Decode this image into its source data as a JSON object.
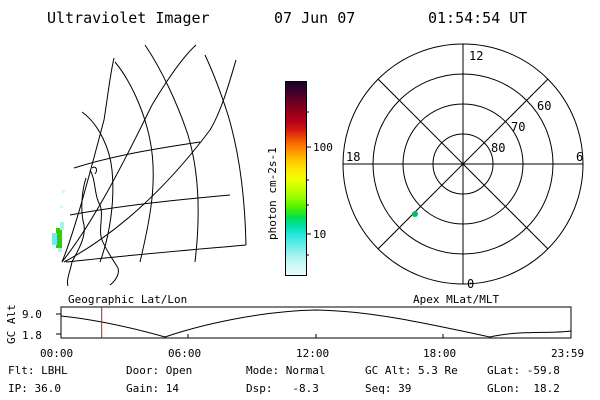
{
  "header": {
    "instrument": "Ultraviolet Imager",
    "date": "07 Jun 07",
    "time": "01:54:54 UT"
  },
  "left_panel": {
    "caption": "Geographic Lat/Lon"
  },
  "colorbar": {
    "label": "photon cm-2s-1",
    "ticks": [
      "100",
      "10"
    ],
    "colors": [
      "#1a0026",
      "#40002a",
      "#6a0022",
      "#90001a",
      "#b20016",
      "#d41a10",
      "#ee5a00",
      "#ff8c00",
      "#ffbf00",
      "#ffe400",
      "#f0ff00",
      "#c8ff00",
      "#90ff00",
      "#50f000",
      "#00e050",
      "#00e0b0",
      "#30e8e0",
      "#70ece8",
      "#a8f2f0",
      "#d0f8f6",
      "#e8fcfb"
    ]
  },
  "polar_plot": {
    "caption": "Apex MLat/MLT",
    "hour_labels": {
      "top": "12",
      "left": "18",
      "right": "6",
      "bottom": "0"
    },
    "lat_labels": [
      "60",
      "70",
      "80"
    ]
  },
  "altitude_plot": {
    "ylabel": "GC Alt",
    "yticks": [
      "9.0",
      "1.8"
    ],
    "xticks": [
      "00:00",
      "06:00",
      "12:00",
      "18:00",
      "23:59"
    ],
    "marker_time_hours": 1.915,
    "marker_color": "#ff0000"
  },
  "info": {
    "row1": {
      "flt": "Flt: LBHL",
      "door": "Door: Open",
      "mode": "Mode: Normal",
      "gcalt": "GC Alt: 5.3 Re",
      "glat": "GLat: -59.8"
    },
    "row2": {
      "ip": "IP: 36.0",
      "gain": "Gain: 14",
      "dsp": "Dsp:   -8.3",
      "seq": "Seq: 39",
      "glon": "GLon:  18.2"
    }
  }
}
